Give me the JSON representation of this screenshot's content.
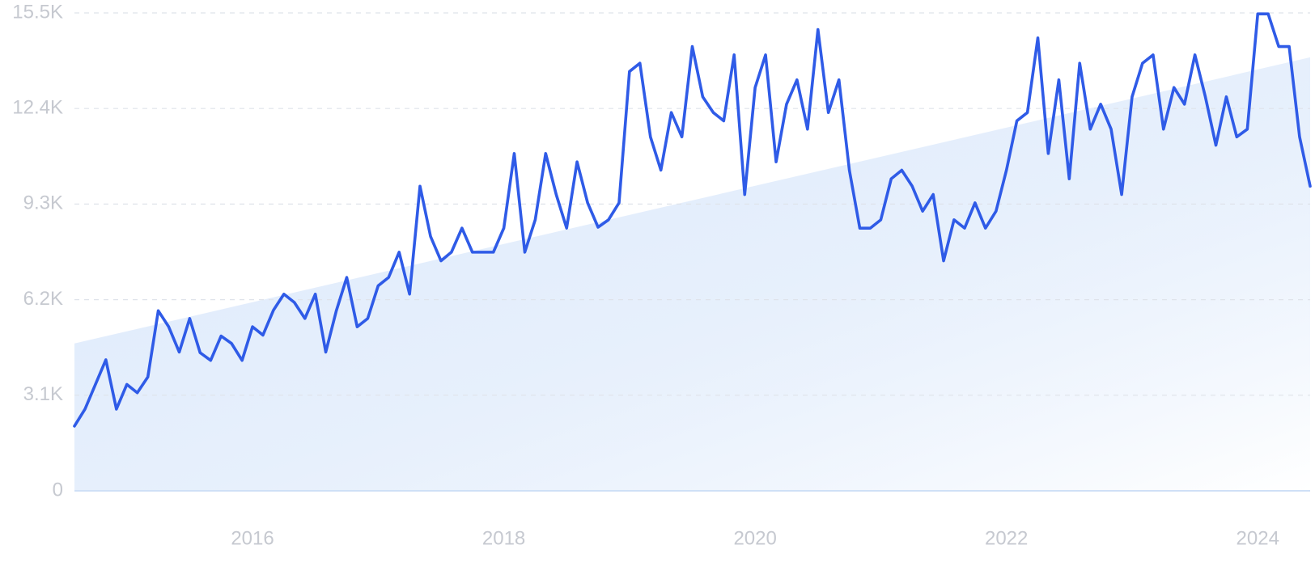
{
  "chart_data": {
    "type": "line",
    "color": "#2f5be7",
    "grid": true,
    "xlim": [
      2014.583,
      2024.417
    ],
    "xticks": [
      2016,
      2018,
      2020,
      2022,
      2024
    ],
    "ylim": [
      0,
      15500
    ],
    "yticks": [
      {
        "value": 0,
        "label": "0"
      },
      {
        "value": 3100,
        "label": "3.1K"
      },
      {
        "value": 6200,
        "label": "6.2K"
      },
      {
        "value": 9300,
        "label": "9.3K"
      },
      {
        "value": 12400,
        "label": "12.4K"
      },
      {
        "value": 15500,
        "label": "15.5K"
      }
    ],
    "trend_area": {
      "x": [
        2014.583,
        2024.417
      ],
      "values": [
        4780,
        14060
      ],
      "color": "#dce9fb"
    },
    "x": [
      2014.583,
      2014.667,
      2014.75,
      2014.833,
      2014.917,
      2015,
      2015.083,
      2015.167,
      2015.25,
      2015.333,
      2015.417,
      2015.5,
      2015.583,
      2015.667,
      2015.75,
      2015.833,
      2015.917,
      2016,
      2016.083,
      2016.167,
      2016.25,
      2016.333,
      2016.417,
      2016.5,
      2016.583,
      2016.667,
      2016.75,
      2016.833,
      2016.917,
      2017,
      2017.083,
      2017.167,
      2017.25,
      2017.333,
      2017.417,
      2017.5,
      2017.583,
      2017.667,
      2017.75,
      2017.833,
      2017.917,
      2018,
      2018.083,
      2018.167,
      2018.25,
      2018.333,
      2018.417,
      2018.5,
      2018.583,
      2018.667,
      2018.75,
      2018.833,
      2018.917,
      2019,
      2019.083,
      2019.167,
      2019.25,
      2019.333,
      2019.417,
      2019.5,
      2019.583,
      2019.667,
      2019.75,
      2019.833,
      2019.917,
      2020,
      2020.083,
      2020.167,
      2020.25,
      2020.333,
      2020.417,
      2020.5,
      2020.583,
      2020.667,
      2020.75,
      2020.833,
      2020.917,
      2021,
      2021.083,
      2021.167,
      2021.25,
      2021.333,
      2021.417,
      2021.5,
      2021.583,
      2021.667,
      2021.75,
      2021.833,
      2021.917,
      2022,
      2022.083,
      2022.167,
      2022.25,
      2022.333,
      2022.417,
      2022.5,
      2022.583,
      2022.667,
      2022.75,
      2022.833,
      2022.917,
      2023,
      2023.083,
      2023.167,
      2023.25,
      2023.333,
      2023.417,
      2023.5,
      2023.583,
      2023.667,
      2023.75,
      2023.833,
      2023.917,
      2024,
      2024.083,
      2024.167,
      2024.25,
      2024.333,
      2024.417
    ],
    "values": [
      2100,
      2650,
      3450,
      4250,
      2650,
      3450,
      3180,
      3690,
      5840,
      5320,
      4500,
      5590,
      4480,
      4230,
      5020,
      4780,
      4230,
      5320,
      5050,
      5860,
      6380,
      6110,
      5590,
      6380,
      4500,
      5840,
      6920,
      5320,
      5590,
      6650,
      6920,
      7740,
      6380,
      9880,
      8250,
      7460,
      7740,
      8520,
      7740,
      7740,
      7740,
      8520,
      10940,
      7740,
      8790,
      10940,
      9610,
      8520,
      10670,
      9340,
      8550,
      8790,
      9340,
      13600,
      13870,
      11480,
      10400,
      12270,
      11480,
      14410,
      12780,
      12270,
      12000,
      14140,
      9610,
      13080,
      14140,
      10670,
      12540,
      13330,
      11730,
      14960,
      12270,
      13330,
      10400,
      8520,
      8520,
      8790,
      10120,
      10400,
      9880,
      9070,
      9610,
      7460,
      8790,
      8520,
      9340,
      8520,
      9070,
      10400,
      12000,
      12270,
      14690,
      10940,
      13330,
      10120,
      13870,
      11730,
      12540,
      11730,
      9610,
      12780,
      13870,
      14140,
      11730,
      13080,
      12540,
      14140,
      12780,
      11210,
      12780,
      11480,
      11730,
      15470,
      15470,
      14410,
      14410,
      11480,
      9880
    ]
  }
}
